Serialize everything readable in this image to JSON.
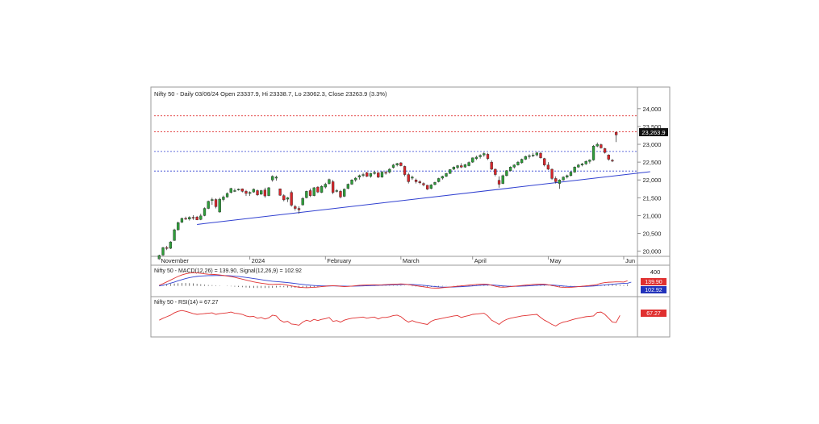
{
  "chart_data": {
    "type": "candlestick",
    "instrument": "Nifty 50",
    "header": "Nifty 50 - Daily 03/06/24 Open 23337.9, Hi 23338.7, Lo 23062.3, Close 23263.9 (3.3%)",
    "ohlc_latest": {
      "date": "03/06/24",
      "open": 23337.9,
      "high": 23338.7,
      "low": 23062.3,
      "close": 23263.9,
      "change_pct": 3.3
    },
    "price_axis": {
      "ticks": [
        24000,
        23500,
        23000,
        22500,
        22000,
        21500,
        21000,
        20500,
        20000
      ],
      "tick_labels": [
        "24,000",
        "23,500",
        "23,000",
        "22,500",
        "22,000",
        "21,500",
        "21,000",
        "20,500",
        "20,000"
      ],
      "range": [
        19900,
        24200
      ]
    },
    "last_price_label": "23,263.9",
    "time_axis": [
      {
        "label": "November",
        "i": 0
      },
      {
        "label": "2024",
        "i": 24
      },
      {
        "label": "February",
        "i": 44
      },
      {
        "label": "March",
        "i": 64
      },
      {
        "label": "April",
        "i": 83
      },
      {
        "label": "May",
        "i": 103
      },
      {
        "label": "Jun",
        "i": 123
      }
    ],
    "horizontal_levels": [
      {
        "value": 23800,
        "color": "#e03030"
      },
      {
        "value": 23350,
        "color": "#e03030"
      },
      {
        "value": 22800,
        "color": "#3040d0"
      },
      {
        "value": 22250,
        "color": "#3040d0"
      }
    ],
    "trendline": {
      "from": {
        "i": 10,
        "value": 20750
      },
      "to": {
        "i": 130,
        "value": 22230
      },
      "color": "#3040d0"
    },
    "candles": [
      [
        19780,
        19900,
        19760,
        19880
      ],
      [
        19890,
        20120,
        19870,
        20100
      ],
      [
        20100,
        20150,
        20030,
        20080
      ],
      [
        20080,
        20280,
        20060,
        20260
      ],
      [
        20300,
        20630,
        20290,
        20600
      ],
      [
        20600,
        20830,
        20580,
        20800
      ],
      [
        20810,
        20940,
        20790,
        20920
      ],
      [
        20920,
        20970,
        20880,
        20900
      ],
      [
        20900,
        20980,
        20860,
        20950
      ],
      [
        20950,
        21010,
        20880,
        20930
      ],
      [
        20960,
        20990,
        20870,
        20880
      ],
      [
        20890,
        21050,
        20870,
        20990
      ],
      [
        21000,
        21230,
        20980,
        21200
      ],
      [
        21200,
        21420,
        21180,
        21400
      ],
      [
        21420,
        21500,
        21300,
        21450
      ],
      [
        21450,
        21480,
        21200,
        21250
      ],
      [
        21100,
        21500,
        21080,
        21460
      ],
      [
        21450,
        21560,
        21400,
        21520
      ],
      [
        21520,
        21650,
        21500,
        21620
      ],
      [
        21650,
        21780,
        21620,
        21760
      ],
      [
        21700,
        21760,
        21660,
        21700
      ],
      [
        21720,
        21760,
        21700,
        21740
      ],
      [
        21750,
        21760,
        21650,
        21680
      ],
      [
        21680,
        21720,
        21550,
        21620
      ],
      [
        21620,
        21680,
        21550,
        21650
      ],
      [
        21660,
        21760,
        21640,
        21740
      ],
      [
        21700,
        21730,
        21550,
        21580
      ],
      [
        21600,
        21720,
        21580,
        21700
      ],
      [
        21720,
        21780,
        21500,
        21550
      ],
      [
        21560,
        21800,
        21540,
        21780
      ],
      [
        22000,
        22130,
        21950,
        22100
      ],
      [
        22050,
        22120,
        21980,
        22080
      ],
      [
        21750,
        21760,
        21550,
        21570
      ],
      [
        21560,
        21600,
        21400,
        21440
      ],
      [
        21460,
        21520,
        21380,
        21500
      ],
      [
        21650,
        21700,
        21250,
        21290
      ],
      [
        21250,
        21300,
        21140,
        21200
      ],
      [
        21200,
        21260,
        21050,
        21160
      ],
      [
        21300,
        21520,
        21280,
        21480
      ],
      [
        21500,
        21700,
        21480,
        21680
      ],
      [
        21700,
        21760,
        21520,
        21560
      ],
      [
        21560,
        21800,
        21540,
        21780
      ],
      [
        21800,
        21820,
        21630,
        21660
      ],
      [
        21650,
        21850,
        21630,
        21820
      ],
      [
        21800,
        21920,
        21760,
        21880
      ],
      [
        21900,
        22040,
        21870,
        22010
      ],
      [
        21950,
        22000,
        21600,
        21650
      ],
      [
        21700,
        21740,
        21650,
        21700
      ],
      [
        21680,
        21720,
        21480,
        21520
      ],
      [
        21540,
        21760,
        21520,
        21740
      ],
      [
        21760,
        21900,
        21740,
        21880
      ],
      [
        21880,
        22020,
        21860,
        22000
      ],
      [
        22000,
        22080,
        21950,
        22050
      ],
      [
        22080,
        22150,
        22010,
        22120
      ],
      [
        22130,
        22200,
        22080,
        22150
      ],
      [
        22200,
        22230,
        22080,
        22100
      ],
      [
        22100,
        22200,
        22060,
        22180
      ],
      [
        22180,
        22250,
        22150,
        22210
      ],
      [
        22200,
        22220,
        22050,
        22080
      ],
      [
        22080,
        22250,
        22060,
        22220
      ],
      [
        22210,
        22260,
        22150,
        22200
      ],
      [
        22220,
        22330,
        22180,
        22300
      ],
      [
        22350,
        22450,
        22320,
        22420
      ],
      [
        22420,
        22480,
        22380,
        22460
      ],
      [
        22480,
        22500,
        22380,
        22400
      ],
      [
        22380,
        22400,
        22100,
        22150
      ],
      [
        22150,
        22200,
        21900,
        21950
      ],
      [
        22050,
        22120,
        22000,
        22080
      ],
      [
        22000,
        22040,
        21900,
        21950
      ],
      [
        21950,
        21990,
        21880,
        21920
      ],
      [
        21900,
        21930,
        21820,
        21860
      ],
      [
        21850,
        21860,
        21720,
        21740
      ],
      [
        21760,
        21880,
        21740,
        21860
      ],
      [
        21870,
        21950,
        21850,
        21930
      ],
      [
        21950,
        22060,
        21930,
        22040
      ],
      [
        22050,
        22120,
        22010,
        22100
      ],
      [
        22100,
        22200,
        22080,
        22180
      ],
      [
        22180,
        22300,
        22170,
        22290
      ],
      [
        22300,
        22380,
        22280,
        22360
      ],
      [
        22350,
        22420,
        22300,
        22400
      ],
      [
        22400,
        22470,
        22330,
        22360
      ],
      [
        22360,
        22450,
        22340,
        22430
      ],
      [
        22400,
        22520,
        22380,
        22490
      ],
      [
        22500,
        22630,
        22480,
        22620
      ],
      [
        22600,
        22680,
        22560,
        22640
      ],
      [
        22650,
        22720,
        22600,
        22690
      ],
      [
        22700,
        22780,
        22650,
        22740
      ],
      [
        22720,
        22760,
        22560,
        22600
      ],
      [
        22500,
        22550,
        22280,
        22300
      ],
      [
        22300,
        22320,
        22100,
        22150
      ],
      [
        21990,
        22100,
        21780,
        21880
      ],
      [
        21900,
        22150,
        21880,
        22120
      ],
      [
        22120,
        22280,
        22100,
        22260
      ],
      [
        22260,
        22380,
        22240,
        22360
      ],
      [
        22360,
        22440,
        22320,
        22420
      ],
      [
        22420,
        22530,
        22400,
        22500
      ],
      [
        22480,
        22600,
        22460,
        22580
      ],
      [
        22580,
        22680,
        22560,
        22660
      ],
      [
        22660,
        22720,
        22600,
        22680
      ],
      [
        22680,
        22760,
        22640,
        22700
      ],
      [
        22700,
        22790,
        22660,
        22760
      ],
      [
        22750,
        22790,
        22600,
        22620
      ],
      [
        22600,
        22620,
        22380,
        22420
      ],
      [
        22420,
        22500,
        22280,
        22300
      ],
      [
        22300,
        22320,
        22000,
        22040
      ],
      [
        22040,
        22100,
        21900,
        21950
      ],
      [
        21900,
        22020,
        21750,
        22000
      ],
      [
        22000,
        22100,
        21980,
        22080
      ],
      [
        22080,
        22150,
        22040,
        22120
      ],
      [
        22120,
        22250,
        22100,
        22220
      ],
      [
        22220,
        22380,
        22200,
        22360
      ],
      [
        22360,
        22450,
        22340,
        22420
      ],
      [
        22420,
        22480,
        22380,
        22450
      ],
      [
        22450,
        22550,
        22420,
        22520
      ],
      [
        22520,
        22580,
        22460,
        22560
      ],
      [
        22560,
        22980,
        22540,
        22950
      ],
      [
        22950,
        23050,
        22920,
        23000
      ],
      [
        22990,
        23020,
        22880,
        22900
      ],
      [
        22880,
        22900,
        22740,
        22770
      ],
      [
        22700,
        22720,
        22540,
        22580
      ],
      [
        22550,
        22590,
        22500,
        22530
      ],
      [
        23337.9,
        23338.7,
        23062.3,
        23263.9
      ]
    ],
    "macd": {
      "label": "Nifty 50 - MACD(12,26) = 139.90, Signal(12,26,9) = 102.92",
      "macd_value": 139.9,
      "signal_value": 102.92,
      "axis_ticks": [
        400
      ],
      "range": [
        -250,
        500
      ],
      "macd_color": "#e03030",
      "signal_color": "#3040d0",
      "macd_series": [
        20,
        60,
        110,
        160,
        210,
        260,
        300,
        330,
        350,
        360,
        355,
        345,
        330,
        320,
        315,
        310,
        300,
        285,
        270,
        255,
        235,
        210,
        185,
        160,
        135,
        110,
        90,
        75,
        60,
        45,
        40,
        45,
        50,
        40,
        20,
        0,
        -20,
        -35,
        -45,
        -50,
        -45,
        -40,
        -30,
        -20,
        -10,
        0,
        5,
        0,
        -10,
        -20,
        -15,
        -5,
        5,
        15,
        20,
        25,
        30,
        30,
        28,
        30,
        35,
        40,
        45,
        50,
        55,
        50,
        35,
        20,
        5,
        -10,
        -25,
        -40,
        -55,
        -60,
        -60,
        -50,
        -40,
        -30,
        -20,
        -10,
        0,
        10,
        20,
        30,
        40,
        45,
        50,
        40,
        20,
        -10,
        -30,
        -35,
        -30,
        -20,
        -10,
        0,
        10,
        20,
        30,
        40,
        45,
        50,
        45,
        30,
        10,
        -10,
        -30,
        -40,
        -45,
        -40,
        -30,
        -20,
        -10,
        0,
        10,
        20,
        40,
        70,
        90,
        100,
        105,
        110,
        110,
        105,
        139.9
      ],
      "signal_series": [
        0,
        20,
        45,
        75,
        105,
        140,
        170,
        200,
        225,
        245,
        260,
        270,
        275,
        280,
        282,
        284,
        285,
        283,
        280,
        275,
        268,
        258,
        245,
        232,
        218,
        202,
        186,
        170,
        155,
        140,
        127,
        117,
        109,
        100,
        90,
        78,
        65,
        52,
        40,
        28,
        18,
        10,
        4,
        0,
        -2,
        -2,
        -1,
        -2,
        -4,
        -6,
        -8,
        -8,
        -6,
        -3,
        0,
        4,
        8,
        12,
        15,
        18,
        21,
        25,
        29,
        33,
        37,
        40,
        40,
        38,
        33,
        25,
        15,
        4,
        -8,
        -18,
        -27,
        -32,
        -34,
        -33,
        -30,
        -26,
        -21,
        -15,
        -8,
        0,
        8,
        15,
        22,
        26,
        26,
        19,
        9,
        0,
        -7,
        -11,
        -12,
        -10,
        -6,
        -2,
        3,
        9,
        15,
        21,
        25,
        26,
        24,
        17,
        7,
        -3,
        -12,
        -18,
        -21,
        -20,
        -18,
        -14,
        -9,
        -2,
        6,
        16,
        27,
        37,
        46,
        54,
        62,
        68,
        72,
        102.92
      ]
    },
    "rsi": {
      "label": "Nifty 50 - RSI(14) = 67.27",
      "value": 67.27,
      "range": [
        20,
        95
      ],
      "color": "#e03030",
      "series": [
        55,
        60,
        64,
        68,
        74,
        78,
        80,
        78,
        75,
        72,
        70,
        71,
        72,
        73,
        74,
        70,
        72,
        73,
        74,
        76,
        73,
        72,
        70,
        66,
        64,
        65,
        60,
        62,
        58,
        61,
        68,
        66,
        55,
        50,
        52,
        45,
        44,
        42,
        50,
        55,
        52,
        57,
        54,
        57,
        59,
        62,
        52,
        54,
        50,
        55,
        58,
        60,
        61,
        62,
        63,
        60,
        62,
        63,
        58,
        62,
        62,
        64,
        67,
        68,
        64,
        56,
        50,
        54,
        50,
        48,
        46,
        44,
        52,
        56,
        58,
        60,
        62,
        64,
        66,
        67,
        62,
        65,
        67,
        70,
        71,
        72,
        73,
        66,
        55,
        50,
        44,
        52,
        57,
        60,
        62,
        64,
        66,
        67,
        68,
        69,
        70,
        62,
        55,
        50,
        44,
        40,
        46,
        50,
        52,
        55,
        58,
        60,
        62,
        64,
        65,
        66,
        75,
        76,
        70,
        60,
        50,
        49,
        67.27
      ]
    }
  }
}
